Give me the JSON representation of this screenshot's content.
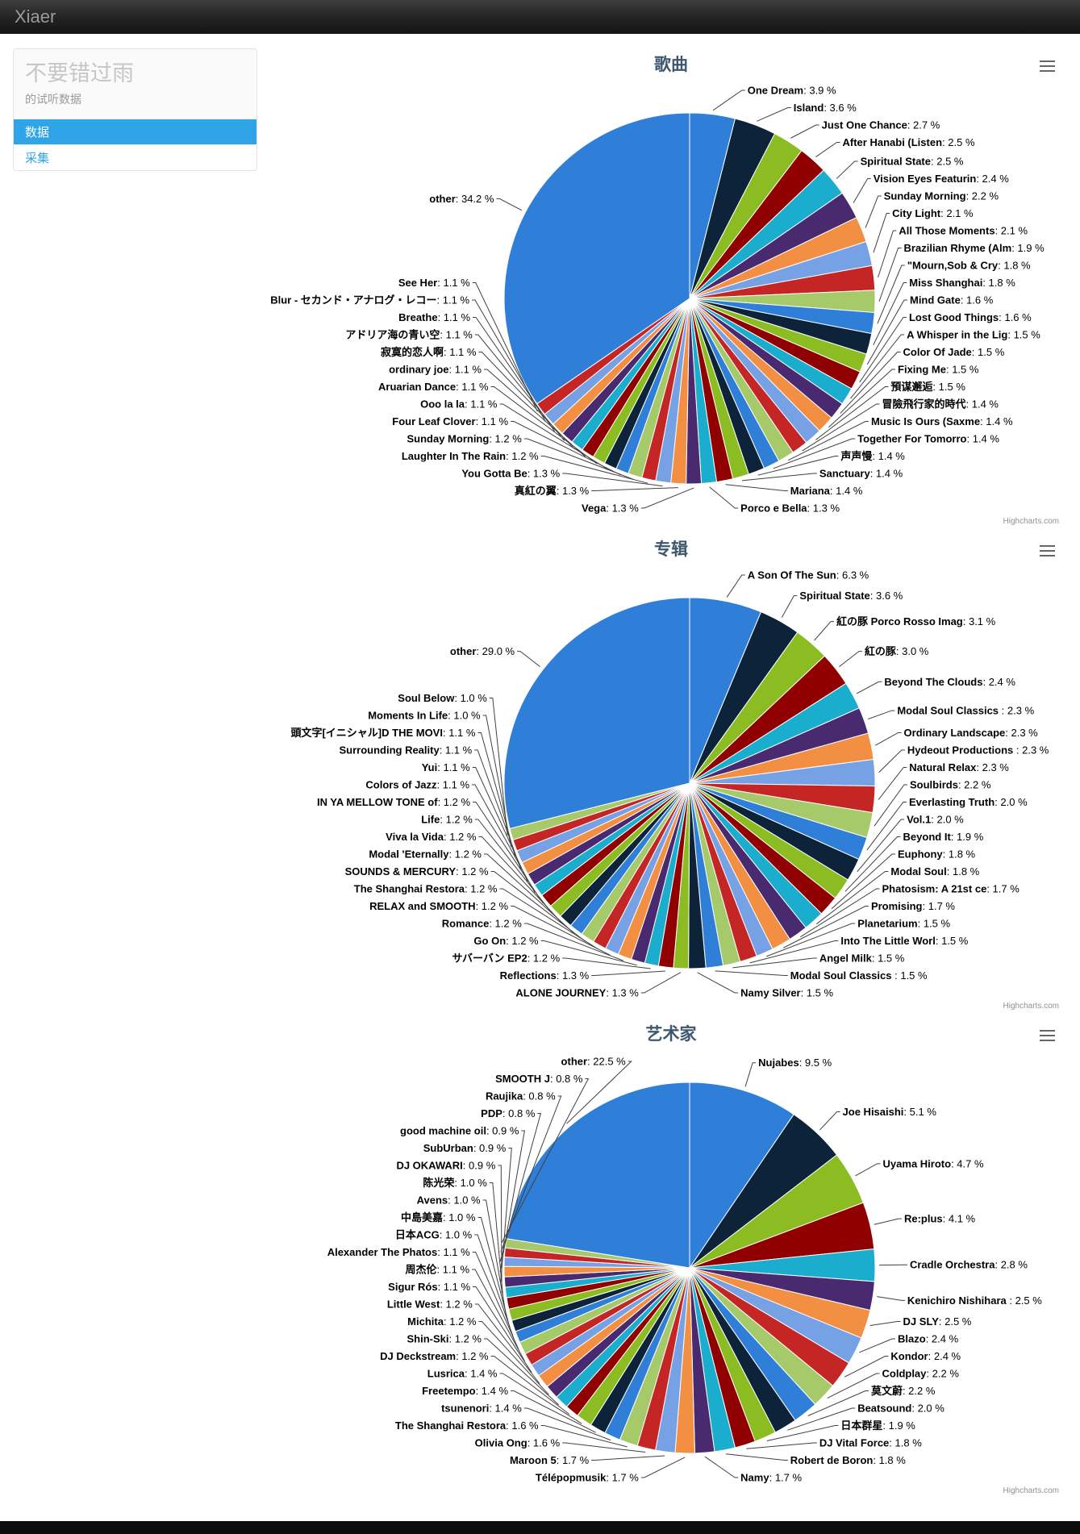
{
  "header": {
    "brand": "Xiaer"
  },
  "sidebar": {
    "title": "不要错过雨",
    "subtitle": "的试听数据",
    "items": [
      {
        "label": "数据",
        "active": true
      },
      {
        "label": "采集",
        "active": false
      }
    ]
  },
  "accent_color": "#2fa4e7",
  "credits_label": "Highcharts.com",
  "palette": [
    "#2f7ed8",
    "#0d233a",
    "#8bbc21",
    "#910000",
    "#1aadce",
    "#492970",
    "#f28f43",
    "#77a1e5",
    "#c42525",
    "#a6c96a"
  ],
  "chart_data": [
    {
      "type": "pie",
      "title": "歌曲",
      "unit": "%",
      "slices": [
        {
          "name": "One Dream",
          "pct": 3.9
        },
        {
          "name": "Island",
          "pct": 3.6
        },
        {
          "name": "Just One Chance",
          "pct": 2.7
        },
        {
          "name": "After Hanabi (Listen",
          "pct": 2.5
        },
        {
          "name": "Spiritual State",
          "pct": 2.5
        },
        {
          "name": "Vision Eyes Featurin",
          "pct": 2.4
        },
        {
          "name": "Sunday Morning",
          "pct": 2.2
        },
        {
          "name": "City Light",
          "pct": 2.1
        },
        {
          "name": "All Those Moments",
          "pct": 2.1
        },
        {
          "name": "Brazilian Rhyme (Alm",
          "pct": 1.9
        },
        {
          "name": "\"Mourn,Sob & Cry",
          "pct": 1.8
        },
        {
          "name": "Miss Shanghai",
          "pct": 1.8
        },
        {
          "name": "Mind Gate",
          "pct": 1.6
        },
        {
          "name": "Lost Good Things",
          "pct": 1.6
        },
        {
          "name": "A Whisper in the Lig",
          "pct": 1.5
        },
        {
          "name": "Color Of Jade",
          "pct": 1.5
        },
        {
          "name": "Fixing Me",
          "pct": 1.5
        },
        {
          "name": "預谋邂逅",
          "pct": 1.5
        },
        {
          "name": "冒險飛行家的時代",
          "pct": 1.4
        },
        {
          "name": "Music Is Ours (Saxme",
          "pct": 1.4
        },
        {
          "name": "Together For Tomorro",
          "pct": 1.4
        },
        {
          "name": "声声慢",
          "pct": 1.4
        },
        {
          "name": "Sanctuary",
          "pct": 1.4
        },
        {
          "name": "Mariana",
          "pct": 1.4
        },
        {
          "name": "Porco e Bella",
          "pct": 1.3
        },
        {
          "name": "Vega",
          "pct": 1.3
        },
        {
          "name": "真紅の翼",
          "pct": 1.3
        },
        {
          "name": "You Gotta Be",
          "pct": 1.3
        },
        {
          "name": "Laughter In The Rain",
          "pct": 1.2
        },
        {
          "name": "Sunday Morning",
          "pct": 1.2
        },
        {
          "name": "Four Leaf Clover",
          "pct": 1.1
        },
        {
          "name": "Ooo la la",
          "pct": 1.1
        },
        {
          "name": "Aruarian Dance",
          "pct": 1.1
        },
        {
          "name": "ordinary joe",
          "pct": 1.1
        },
        {
          "name": "寂寞的恋人啊",
          "pct": 1.1
        },
        {
          "name": "アドリア海の青い空",
          "pct": 1.1
        },
        {
          "name": "Breathe",
          "pct": 1.1
        },
        {
          "name": "Blur - セカンド・アナログ・レコー",
          "pct": 1.1
        },
        {
          "name": "See Her",
          "pct": 1.1
        },
        {
          "name": "other",
          "pct": 34.2
        }
      ]
    },
    {
      "type": "pie",
      "title": "专辑",
      "unit": "%",
      "slices": [
        {
          "name": "A Son Of The Sun",
          "pct": 6.3
        },
        {
          "name": "Spiritual State",
          "pct": 3.6
        },
        {
          "name": "紅の豚 Porco Rosso Imag",
          "pct": 3.1
        },
        {
          "name": "紅の豚",
          "pct": 3.0
        },
        {
          "name": "Beyond The Clouds",
          "pct": 2.4
        },
        {
          "name": "Modal Soul Classics ",
          "pct": 2.3
        },
        {
          "name": "Ordinary Landscape",
          "pct": 2.3
        },
        {
          "name": "Hydeout Productions ",
          "pct": 2.3
        },
        {
          "name": "Natural Relax",
          "pct": 2.3
        },
        {
          "name": "Soulbirds",
          "pct": 2.2
        },
        {
          "name": "Everlasting Truth",
          "pct": 2.0
        },
        {
          "name": "Vol.1",
          "pct": 2.0
        },
        {
          "name": "Beyond It",
          "pct": 1.9
        },
        {
          "name": "Euphony",
          "pct": 1.8
        },
        {
          "name": "Modal Soul",
          "pct": 1.8
        },
        {
          "name": "Phatosism: A 21st ce",
          "pct": 1.7
        },
        {
          "name": "Promising",
          "pct": 1.7
        },
        {
          "name": "Planetarium",
          "pct": 1.5
        },
        {
          "name": "Into The Little Worl",
          "pct": 1.5
        },
        {
          "name": "Angel Milk",
          "pct": 1.5
        },
        {
          "name": "Modal Soul Classics ",
          "pct": 1.5
        },
        {
          "name": "Namy Silver",
          "pct": 1.5
        },
        {
          "name": "ALONE JOURNEY",
          "pct": 1.3
        },
        {
          "name": "Reflections",
          "pct": 1.3
        },
        {
          "name": "サバーバン EP2",
          "pct": 1.2
        },
        {
          "name": "Go On",
          "pct": 1.2
        },
        {
          "name": "Romance",
          "pct": 1.2
        },
        {
          "name": "RELAX and SMOOTH",
          "pct": 1.2
        },
        {
          "name": "The Shanghai Restora",
          "pct": 1.2
        },
        {
          "name": "SOUNDS & MERCURY",
          "pct": 1.2
        },
        {
          "name": "Modal 'Eternally",
          "pct": 1.2
        },
        {
          "name": "Viva la Vida",
          "pct": 1.2
        },
        {
          "name": "Life",
          "pct": 1.2
        },
        {
          "name": "IN YA MELLOW TONE of",
          "pct": 1.2
        },
        {
          "name": "Colors of Jazz",
          "pct": 1.1
        },
        {
          "name": "Yui",
          "pct": 1.1
        },
        {
          "name": "Surrounding Reality",
          "pct": 1.1
        },
        {
          "name": "頭文字[イニシャル]D THE MOVI",
          "pct": 1.1
        },
        {
          "name": "Moments In Life",
          "pct": 1.0
        },
        {
          "name": "Soul Below",
          "pct": 1.0
        },
        {
          "name": "other",
          "pct": 29.0
        }
      ]
    },
    {
      "type": "pie",
      "title": "艺术家",
      "unit": "%",
      "slices": [
        {
          "name": "Nujabes",
          "pct": 9.5
        },
        {
          "name": "Joe Hisaishi",
          "pct": 5.1
        },
        {
          "name": "Uyama Hiroto",
          "pct": 4.7
        },
        {
          "name": "Re:plus",
          "pct": 4.1
        },
        {
          "name": "Cradle Orchestra",
          "pct": 2.8
        },
        {
          "name": "Kenichiro Nishihara ",
          "pct": 2.5
        },
        {
          "name": "DJ SLY",
          "pct": 2.5
        },
        {
          "name": "Blazo",
          "pct": 2.4
        },
        {
          "name": "Kondor",
          "pct": 2.4
        },
        {
          "name": "Coldplay",
          "pct": 2.2
        },
        {
          "name": "莫文蔚",
          "pct": 2.2
        },
        {
          "name": "Beatsound",
          "pct": 2.0
        },
        {
          "name": "日本群星",
          "pct": 1.9
        },
        {
          "name": "DJ Vital Force",
          "pct": 1.8
        },
        {
          "name": "Robert de Boron",
          "pct": 1.8
        },
        {
          "name": "Namy",
          "pct": 1.7
        },
        {
          "name": "Télépopmusik",
          "pct": 1.7
        },
        {
          "name": "Maroon 5",
          "pct": 1.7
        },
        {
          "name": "Olivia Ong",
          "pct": 1.6
        },
        {
          "name": "The Shanghai Restora",
          "pct": 1.6
        },
        {
          "name": "tsunenori",
          "pct": 1.4
        },
        {
          "name": "Freetempo",
          "pct": 1.4
        },
        {
          "name": "Lusrica",
          "pct": 1.4
        },
        {
          "name": "DJ Deckstream",
          "pct": 1.2
        },
        {
          "name": "Shin-Ski",
          "pct": 1.2
        },
        {
          "name": "Michita",
          "pct": 1.2
        },
        {
          "name": "Little West",
          "pct": 1.2
        },
        {
          "name": "Sigur Rós",
          "pct": 1.1
        },
        {
          "name": "周杰伦",
          "pct": 1.1
        },
        {
          "name": "Alexander The Phatos",
          "pct": 1.1
        },
        {
          "name": "日本ACG",
          "pct": 1.0
        },
        {
          "name": "中島美嘉",
          "pct": 1.0
        },
        {
          "name": "Avens",
          "pct": 1.0
        },
        {
          "name": "陈光荣",
          "pct": 1.0
        },
        {
          "name": "DJ OKAWARI",
          "pct": 0.9
        },
        {
          "name": "SubUrban",
          "pct": 0.9
        },
        {
          "name": "good machine oil",
          "pct": 0.9
        },
        {
          "name": "PDP",
          "pct": 0.8
        },
        {
          "name": "Raujika",
          "pct": 0.8
        },
        {
          "name": "SMOOTH J",
          "pct": 0.8
        },
        {
          "name": "other",
          "pct": 22.5
        }
      ]
    }
  ]
}
